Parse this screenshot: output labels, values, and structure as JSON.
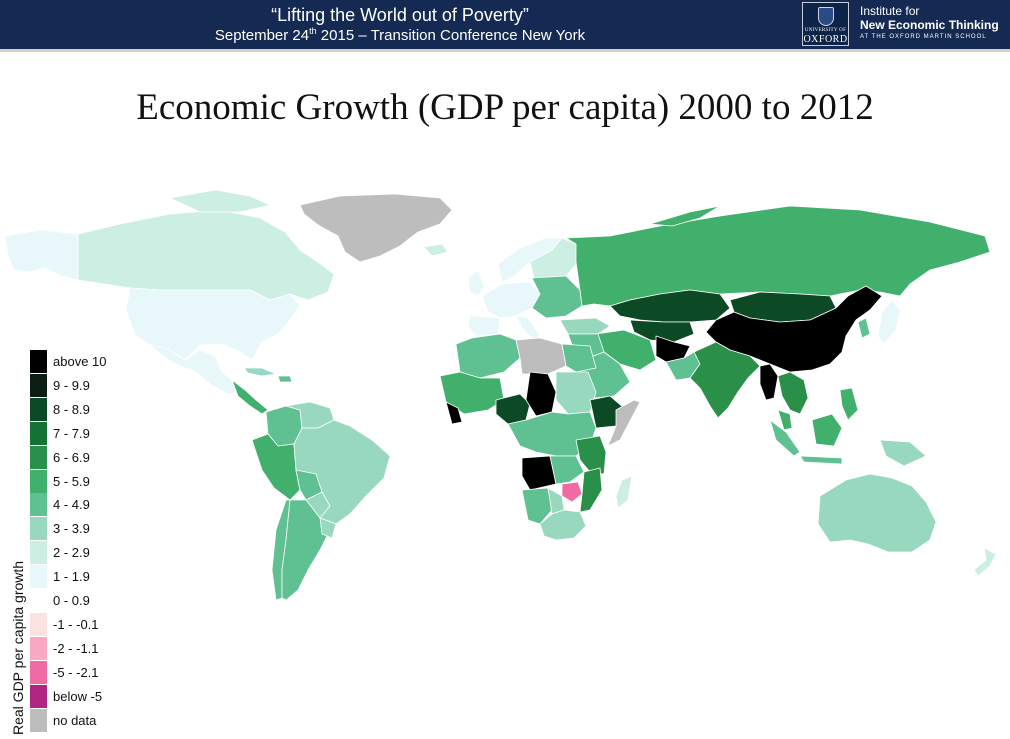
{
  "header": {
    "talk_title": "“Lifting the World out of Poverty”",
    "talk_sub_before": "September 24",
    "talk_sub_sup": "th",
    "talk_sub_after": " 2015 – Transition Conference New York",
    "oxford_small": "UNIVERSITY OF",
    "oxford_big": "OXFORD",
    "inet_line1": "Institute for",
    "inet_line2": "New Economic Thinking",
    "inet_line3": "AT THE OXFORD MARTIN SCHOOL",
    "colors": {
      "bar": "#152a52"
    }
  },
  "slide_title": "Economic Growth (GDP per capita) 2000 to 2012",
  "legend": {
    "axis_label": "Real GDP per capita growth",
    "items": [
      {
        "label": "above 10",
        "color": "#000000"
      },
      {
        "label": "9 - 9.9",
        "color": "#0c1d12"
      },
      {
        "label": "8 - 8.9",
        "color": "#0b4a24"
      },
      {
        "label": "7 - 7.9",
        "color": "#147234"
      },
      {
        "label": "6 - 6.9",
        "color": "#2a8f48"
      },
      {
        "label": "5 - 5.9",
        "color": "#42b06d"
      },
      {
        "label": "4 - 4.9",
        "color": "#5fc092"
      },
      {
        "label": "3 - 3.9",
        "color": "#98d8bf"
      },
      {
        "label": "2 - 2.9",
        "color": "#cdeee2"
      },
      {
        "label": "1 - 1.9",
        "color": "#e8f7fa"
      },
      {
        "label": "0 - 0.9",
        "color": "#ffffff"
      },
      {
        "label": "-1 - -0.1",
        "color": "#fde2e2"
      },
      {
        "label": "-2 - -1.1",
        "color": "#f7a9c3"
      },
      {
        "label": "-5 - -2.1",
        "color": "#f06aa3"
      },
      {
        "label": "below -5",
        "color": "#b02580"
      },
      {
        "label": "no data",
        "color": "#bdbdbd"
      }
    ]
  },
  "map_colors": {
    "no_data": "#bdbdbd",
    "g0": "#e8f7fa",
    "g1": "#cdeee2",
    "g2": "#98d8bf",
    "g3": "#5fc092",
    "g4": "#42b06d",
    "g5": "#2a8f48",
    "g6": "#0b4a24",
    "g7": "#000000",
    "neg": "#f06aa3",
    "outline": "#ffffff"
  }
}
